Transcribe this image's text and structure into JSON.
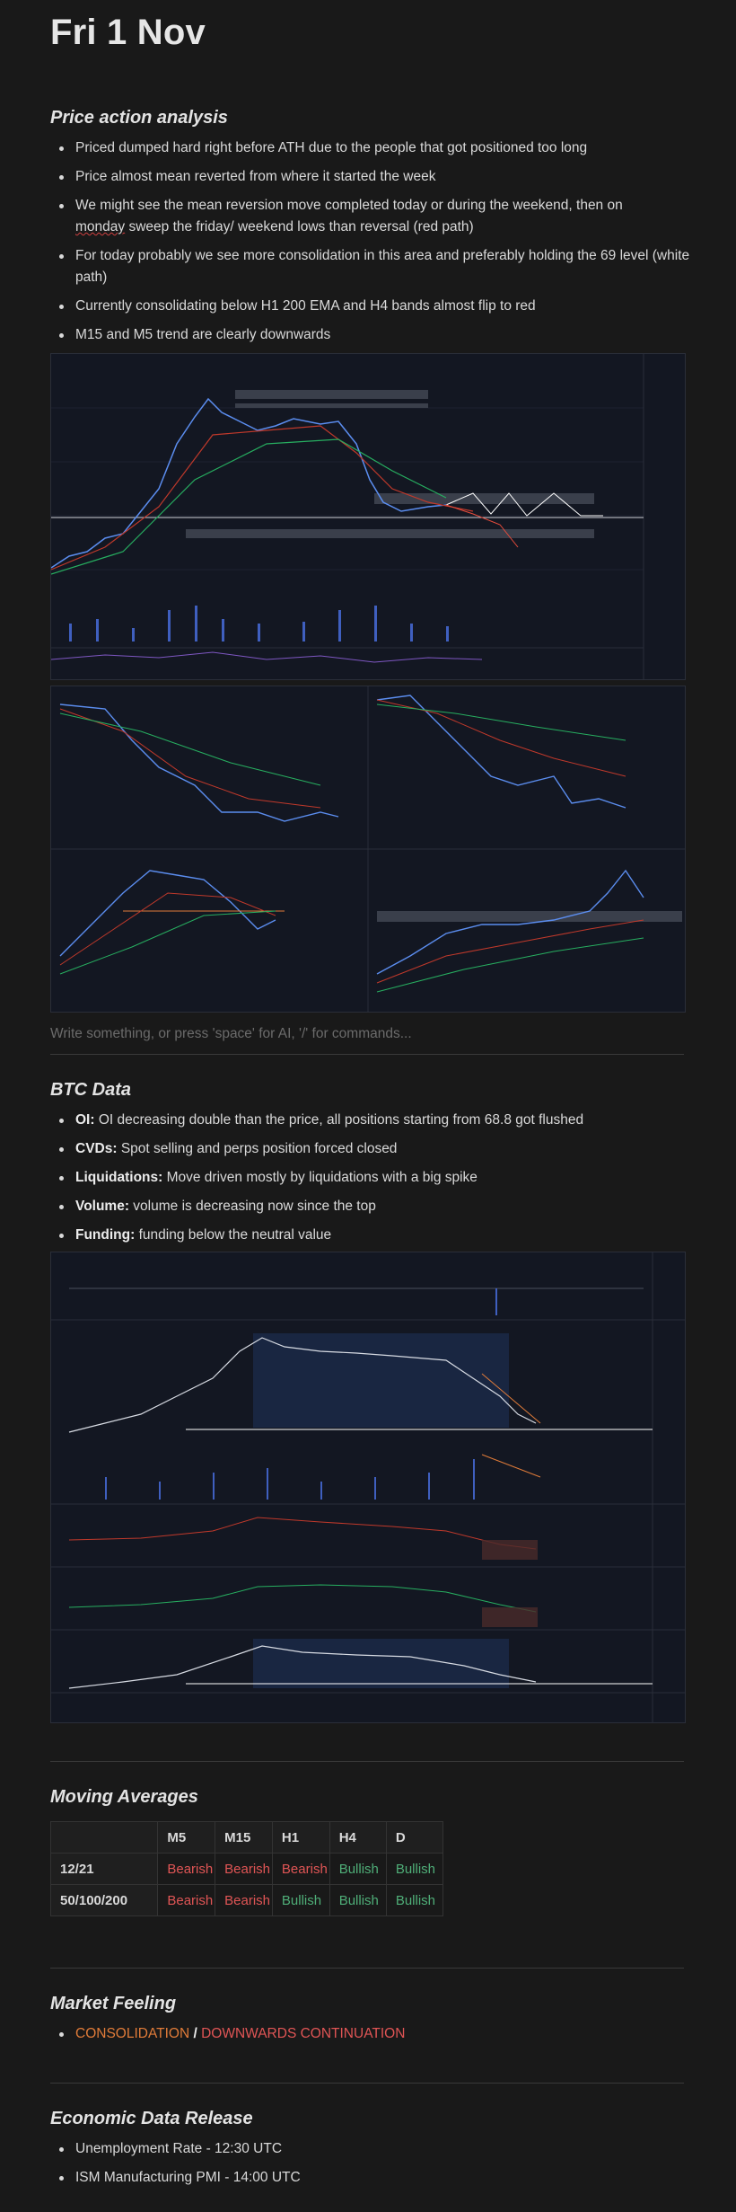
{
  "page_title": "Fri 1 Nov",
  "price_action": {
    "heading": "Price action analysis",
    "bullets": [
      "Priced dumped hard right before ATH due to the people that got positioned too long",
      "Price almost mean reverted from where it started the week",
      "We might see the mean reversion move completed today or during the weekend, then on",
      "monday",
      " sweep the friday/ weekend lows than reversal (red path)",
      "For today probably we see more consolidation in this area and preferably holding the 69 level (white path)",
      "Currently consolidating below H1 200 EMA and H4 bands almost flip to red",
      "M15 and M5 trend are clearly downwards"
    ]
  },
  "placeholder": "Write something, or press 'space' for AI, '/' for commands...",
  "btc_data": {
    "heading": "BTC Data",
    "items": [
      {
        "label": "OI:",
        "text": " OI decreasing double than the price, all positions starting from 68.8 got flushed"
      },
      {
        "label": "CVDs:",
        "text": " Spot selling and perps position forced closed"
      },
      {
        "label": "Liquidations:",
        "text": " Move driven mostly by liquidations with a big spike"
      },
      {
        "label": "Volume:",
        "text": " volume is decreasing now since the top"
      },
      {
        "label": "Funding:",
        "text": " funding below the neutral value"
      }
    ]
  },
  "moving_averages": {
    "heading": "Moving Averages",
    "columns": [
      "",
      "M5",
      "M15",
      "H1",
      "H4",
      "D"
    ],
    "rows": [
      {
        "label": "12/21",
        "cells": [
          "Bearish",
          "Bearish",
          "Bearish",
          "Bullish",
          "Bullish"
        ]
      },
      {
        "label": "50/100/200",
        "cells": [
          "Bearish",
          "Bearish",
          "Bullish",
          "Bullish",
          "Bullish"
        ]
      }
    ]
  },
  "market_feeling": {
    "heading": "Market Feeling",
    "part_a": "CONSOLIDATION",
    "sep": " / ",
    "part_b": "DOWNWARDS CONTINUATION"
  },
  "economic": {
    "heading": "Economic Data Release",
    "items": [
      "Unemployment Rate - 12:30 UTC",
      "ISM Manufacturing PMI - 14:00 UTC"
    ]
  },
  "colors": {
    "bearish": "#e05555",
    "bullish": "#4fae78",
    "accent_orange": "#e07b39"
  }
}
